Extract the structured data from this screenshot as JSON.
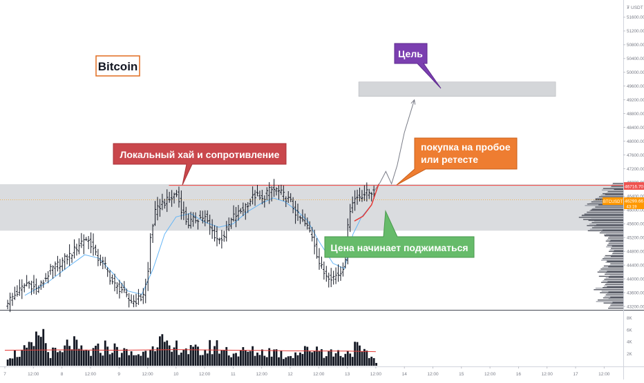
{
  "chart_data": {
    "type": "candlestick",
    "symbol": "BTCUSDT",
    "currency_label": "USDT",
    "title": "Bitcoin",
    "price_axis": {
      "ylim": [
        43100,
        52100
      ],
      "ticks": [
        43200,
        43600,
        44000,
        44400,
        44800,
        45200,
        45600,
        46000,
        46400,
        46800,
        47200,
        47600,
        48000,
        48400,
        48800,
        49200,
        49600,
        50000,
        50400,
        50800,
        51200,
        51600
      ],
      "tick_labels": [
        "43200.00",
        "43600.00",
        "44000.00",
        "44400.00",
        "44800.00",
        "45200.00",
        "45600.00",
        "46000.00",
        "46400.00",
        "46800.00",
        "47200.00",
        "47600.00",
        "48000.00",
        "48400.00",
        "48800.00",
        "49200.00",
        "49600.00",
        "50000.00",
        "50400.00",
        "50800.00",
        "51200.00",
        "51600.00"
      ],
      "top_label": "USDT",
      "currency_symbol": "₮"
    },
    "time_axis": {
      "labels": [
        "7",
        "12:00",
        "8",
        "12:00",
        "9",
        "12:00",
        "10",
        "12:00",
        "11",
        "12:00",
        "12",
        "12:00",
        "13",
        "12:00",
        "14",
        "12:00",
        "15",
        "12:00",
        "16",
        "12:00",
        "17",
        "12:00"
      ],
      "xlim": [
        0,
        22
      ],
      "ticks": [
        0.0,
        1.0,
        2.0,
        3.0,
        4.0,
        5.0,
        6.0,
        7.0,
        8.0,
        9.0,
        10.0,
        11.0,
        12.0,
        13.0,
        14.0,
        15.0,
        16.0,
        17.0,
        18.0,
        19.0,
        20.0,
        21.0
      ]
    },
    "volume_axis": {
      "ylim": [
        0,
        9000
      ],
      "ticks": [
        2000,
        4000,
        6000,
        8000
      ],
      "tick_labels": [
        "2K",
        "4K",
        "6K",
        "8K"
      ]
    },
    "price_path": [
      [
        0.0,
        43300
      ],
      [
        0.2,
        43420
      ],
      [
        0.5,
        43650
      ],
      [
        0.8,
        43900
      ],
      [
        1.1,
        43700
      ],
      [
        1.3,
        43850
      ],
      [
        1.6,
        44250
      ],
      [
        2.0,
        44500
      ],
      [
        2.3,
        44700
      ],
      [
        2.6,
        45000
      ],
      [
        2.8,
        45200
      ],
      [
        3.0,
        45050
      ],
      [
        3.2,
        44650
      ],
      [
        3.5,
        44400
      ],
      [
        3.7,
        44000
      ],
      [
        3.9,
        43750
      ],
      [
        4.1,
        43700
      ],
      [
        4.3,
        43400
      ],
      [
        4.5,
        43350
      ],
      [
        4.8,
        43450
      ],
      [
        5.0,
        44000
      ],
      [
        5.1,
        45200
      ],
      [
        5.25,
        45900
      ],
      [
        5.5,
        46200
      ],
      [
        5.8,
        46300
      ],
      [
        6.0,
        46500
      ],
      [
        6.2,
        46000
      ],
      [
        6.4,
        45600
      ],
      [
        6.7,
        45750
      ],
      [
        7.0,
        45800
      ],
      [
        7.2,
        45450
      ],
      [
        7.5,
        45100
      ],
      [
        7.7,
        45300
      ],
      [
        8.0,
        45800
      ],
      [
        8.2,
        45900
      ],
      [
        8.5,
        46200
      ],
      [
        8.8,
        46450
      ],
      [
        9.0,
        46250
      ],
      [
        9.2,
        46550
      ],
      [
        9.5,
        46600
      ],
      [
        9.8,
        46400
      ],
      [
        10.0,
        46250
      ],
      [
        10.2,
        45900
      ],
      [
        10.4,
        45700
      ],
      [
        10.6,
        45500
      ],
      [
        10.8,
        45200
      ],
      [
        11.0,
        44500
      ],
      [
        11.2,
        44150
      ],
      [
        11.5,
        44050
      ],
      [
        11.8,
        44200
      ],
      [
        11.95,
        44700
      ],
      [
        12.05,
        45850
      ],
      [
        12.15,
        46250
      ],
      [
        12.4,
        46400
      ],
      [
        12.7,
        46500
      ],
      [
        13.0,
        46550
      ]
    ],
    "volume_path": [
      [
        0.0,
        1800
      ],
      [
        0.5,
        2200
      ],
      [
        1.0,
        3200
      ],
      [
        1.3,
        6500
      ],
      [
        1.5,
        2500
      ],
      [
        2.0,
        2000
      ],
      [
        2.3,
        4500
      ],
      [
        2.6,
        2600
      ],
      [
        3.0,
        2300
      ],
      [
        3.3,
        2800
      ],
      [
        3.6,
        3500
      ],
      [
        4.0,
        2500
      ],
      [
        4.5,
        2000
      ],
      [
        5.0,
        2300
      ],
      [
        5.2,
        5000
      ],
      [
        5.5,
        4200
      ],
      [
        5.8,
        2300
      ],
      [
        6.1,
        3600
      ],
      [
        6.5,
        2600
      ],
      [
        7.0,
        2500
      ],
      [
        7.3,
        3600
      ],
      [
        7.6,
        3000
      ],
      [
        8.0,
        2200
      ],
      [
        8.5,
        2500
      ],
      [
        9.0,
        2400
      ],
      [
        9.5,
        2600
      ],
      [
        9.8,
        1700
      ],
      [
        10.0,
        2100
      ],
      [
        10.5,
        2500
      ],
      [
        10.9,
        3300
      ],
      [
        11.2,
        2400
      ],
      [
        11.6,
        2200
      ],
      [
        12.0,
        2300
      ],
      [
        12.3,
        3200
      ],
      [
        12.6,
        2000
      ],
      [
        12.9,
        1500
      ],
      [
        13.05,
        300
      ]
    ],
    "volume_ma": {
      "color": "#e53935",
      "points": [
        [
          0.0,
          2600
        ],
        [
          2.0,
          2650
        ],
        [
          4.0,
          2600
        ],
        [
          6.0,
          2700
        ],
        [
          8.0,
          2600
        ],
        [
          10.0,
          2500
        ],
        [
          12.0,
          2450
        ],
        [
          13.0,
          2350
        ]
      ]
    },
    "moving_average": {
      "color": "#64b5f6",
      "points": [
        [
          0.7,
          43520
        ],
        [
          1.5,
          43900
        ],
        [
          2.3,
          44400
        ],
        [
          2.8,
          44700
        ],
        [
          3.3,
          44600
        ],
        [
          3.8,
          44150
        ],
        [
          4.3,
          43650
        ],
        [
          4.8,
          43550
        ],
        [
          5.2,
          44300
        ],
        [
          5.6,
          45300
        ],
        [
          6.0,
          45800
        ],
        [
          6.5,
          45900
        ],
        [
          7.0,
          45650
        ],
        [
          7.5,
          45500
        ],
        [
          8.0,
          45600
        ],
        [
          8.5,
          45950
        ],
        [
          9.0,
          46200
        ],
        [
          9.4,
          46350
        ],
        [
          9.8,
          46250
        ],
        [
          10.2,
          46000
        ],
        [
          10.6,
          45700
        ],
        [
          11.0,
          45100
        ],
        [
          11.5,
          44450
        ],
        [
          11.9,
          44300
        ],
        [
          12.2,
          45300
        ],
        [
          12.5,
          45800
        ],
        [
          12.8,
          46100
        ]
      ]
    },
    "zones": {
      "resistance": {
        "y0": 45400,
        "y1": 46750
      },
      "target": {
        "x0": 12.4,
        "x1": 19.3,
        "y0": 49300,
        "y1": 49720
      }
    },
    "resistance_line": {
      "x0": 5.75,
      "y": 46716.7,
      "color": "#ef5350"
    },
    "current_price_line": {
      "y": 46299.66,
      "color": "#f9a825"
    },
    "price_tags": {
      "resistance": {
        "label": "46716.70",
        "y": 46716.7,
        "color": "#ef5350"
      },
      "current": {
        "symbol": "BTCUSDT",
        "price": "46299.66",
        "countdown": "43:19",
        "y": 46299.66,
        "color": "#ff9800"
      }
    },
    "projection_path": [
      [
        12.95,
        46560
      ],
      [
        13.15,
        46800
      ],
      [
        13.35,
        47120
      ],
      [
        13.55,
        46760
      ],
      [
        13.75,
        47300
      ],
      [
        14.0,
        48250
      ],
      [
        14.35,
        49200
      ]
    ],
    "support_curve": {
      "color": "#e53935",
      "points": [
        [
          12.25,
          45680
        ],
        [
          12.55,
          45820
        ],
        [
          12.85,
          46150
        ],
        [
          13.1,
          46750
        ]
      ]
    },
    "volume_profile": [
      [
        43250,
        25
      ],
      [
        43400,
        38
      ],
      [
        43550,
        30
      ],
      [
        43700,
        40
      ],
      [
        43850,
        28
      ],
      [
        44000,
        34
      ],
      [
        44150,
        26
      ],
      [
        44300,
        36
      ],
      [
        44450,
        24
      ],
      [
        44600,
        30
      ],
      [
        44750,
        18
      ],
      [
        44900,
        24
      ],
      [
        45050,
        22
      ],
      [
        45200,
        26
      ],
      [
        45350,
        32
      ],
      [
        45500,
        48
      ],
      [
        45650,
        56
      ],
      [
        45800,
        62
      ],
      [
        45950,
        58
      ],
      [
        46100,
        52
      ],
      [
        46250,
        46
      ],
      [
        46400,
        40
      ],
      [
        46550,
        30
      ],
      [
        46700,
        18
      ]
    ],
    "annotations": {
      "local_high": {
        "text": "Локальный хай и сопротивление",
        "color": "#c9474c"
      },
      "target": {
        "text": "Цель",
        "color": "#7b3fb0"
      },
      "breakout_line1": "покупка на пробое",
      "breakout_line2": "или ретесте",
      "breakout_color": "#ee7d31",
      "squeeze": {
        "text": "Цена начинает поджиматься",
        "color": "#66bb6a"
      }
    }
  }
}
